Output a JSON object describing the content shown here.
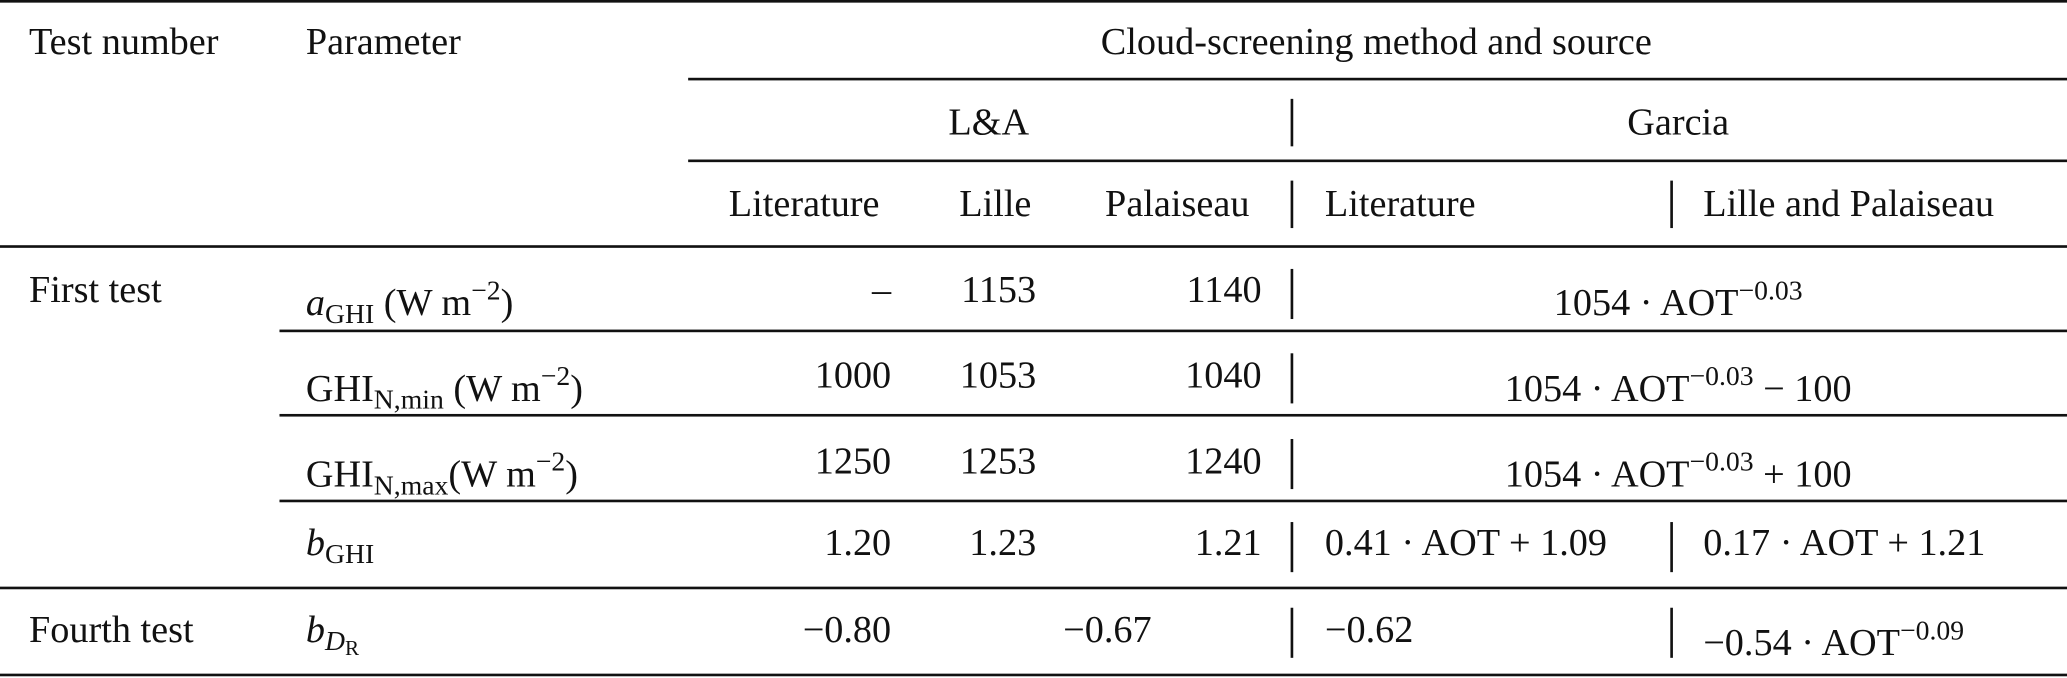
{
  "header": {
    "test_number": "Test number",
    "parameter": "Parameter",
    "group": "Cloud-screening method and source",
    "methods": [
      "L&A",
      "Garcia"
    ],
    "sources": [
      "Literature",
      "Lille",
      "Palaiseau",
      "Literature",
      "Lille and Palaiseau"
    ]
  },
  "rows": [
    {
      "test": "First test",
      "parameter": [
        {
          "t": "a",
          "f": "i"
        },
        {
          "t": "GHI",
          "f": "sub"
        },
        {
          "t": " (W m"
        },
        {
          "t": "−2",
          "f": "sup"
        },
        {
          "t": ")"
        }
      ],
      "cells": [
        [
          {
            "t": "–"
          }
        ],
        [
          {
            "t": "1153"
          }
        ],
        [
          {
            "t": "1140"
          }
        ],
        [
          {
            "t": "1054 · AOT"
          },
          {
            "t": "−0.03",
            "f": "sup"
          }
        ]
      ]
    },
    {
      "parameter": [
        {
          "t": "GHI"
        },
        {
          "t": "N,min",
          "f": "sub"
        },
        {
          "t": " (W m"
        },
        {
          "t": "−2",
          "f": "sup"
        },
        {
          "t": ")"
        }
      ],
      "cells": [
        [
          {
            "t": "1000"
          }
        ],
        [
          {
            "t": "1053"
          }
        ],
        [
          {
            "t": "1040"
          }
        ],
        [
          {
            "t": "1054 · AOT"
          },
          {
            "t": "−0.03",
            "f": "sup"
          },
          {
            "t": " − 100"
          }
        ]
      ]
    },
    {
      "parameter": [
        {
          "t": "GHI"
        },
        {
          "t": "N,max",
          "f": "sub"
        },
        {
          "t": "(W m"
        },
        {
          "t": "−2",
          "f": "sup"
        },
        {
          "t": ")"
        }
      ],
      "cells": [
        [
          {
            "t": "1250"
          }
        ],
        [
          {
            "t": "1253"
          }
        ],
        [
          {
            "t": "1240"
          }
        ],
        [
          {
            "t": "1054 · AOT"
          },
          {
            "t": "−0.03",
            "f": "sup"
          },
          {
            "t": " + 100"
          }
        ]
      ]
    },
    {
      "parameter": [
        {
          "t": "b",
          "f": "i"
        },
        {
          "t": "GHI",
          "f": "sub"
        }
      ],
      "cells": [
        [
          {
            "t": "1.20"
          }
        ],
        [
          {
            "t": "1.23"
          }
        ],
        [
          {
            "t": "1.21"
          }
        ],
        [
          {
            "t": "0.41 · AOT + 1.09"
          }
        ],
        [
          {
            "t": "0.17 · AOT + 1.21"
          }
        ]
      ]
    },
    {
      "test": "Fourth test",
      "parameter": [
        {
          "t": "b",
          "f": "i"
        },
        {
          "t": "D",
          "f": "subi"
        },
        {
          "t": "R",
          "f": "subsub"
        }
      ],
      "cells": [
        [
          {
            "t": "−0.80"
          }
        ],
        [
          {
            "t": "−0.67"
          }
        ],
        [
          {
            "t": "−0.62"
          }
        ],
        [
          {
            "t": "−0.54 · AOT"
          },
          {
            "t": "−0.09",
            "f": "sup"
          }
        ]
      ]
    }
  ]
}
